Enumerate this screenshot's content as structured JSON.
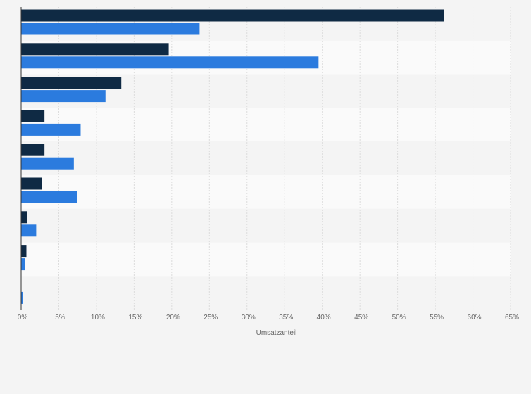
{
  "chart_data": {
    "type": "bar",
    "orientation": "horizontal",
    "categories": [
      "",
      "",
      "",
      "",
      "",
      "",
      "",
      "",
      ""
    ],
    "series": [
      {
        "values": [
          56.2,
          19.6,
          13.3,
          3.1,
          3.1,
          2.8,
          0.8,
          0.7,
          0.0
        ]
      },
      {
        "values": [
          23.7,
          39.5,
          11.2,
          7.9,
          7.0,
          7.4,
          2.0,
          0.5,
          0.2
        ]
      }
    ],
    "xlabel": "Umsatzanteil",
    "xlim": [
      0,
      65
    ],
    "xticks": [
      0,
      5,
      10,
      15,
      20,
      25,
      30,
      35,
      40,
      45,
      50,
      55,
      60,
      65
    ],
    "tick_labels": [
      "0%",
      "5%",
      "10%",
      "15%",
      "20%",
      "25%",
      "30%",
      "35%",
      "40%",
      "45%",
      "50%",
      "55%",
      "60%",
      "65%"
    ],
    "grid": true,
    "legend": false
  },
  "colors": {
    "series": [
      "#0f2a44",
      "#2b7bde"
    ],
    "band_odd": "#f4f4f4",
    "band_even": "#fafafa",
    "grid": "#dcdcdc",
    "axis": "#333333"
  }
}
